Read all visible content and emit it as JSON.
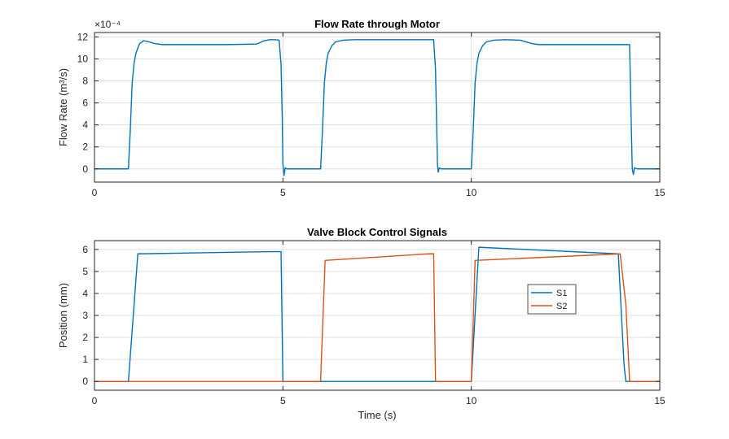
{
  "chart_data": [
    {
      "type": "line",
      "title": "Flow Rate through Motor",
      "xlabel": "",
      "ylabel": "Flow  Rate  (m³/s)",
      "y_exponent_label": "×10⁻⁴",
      "xlim": [
        0,
        15
      ],
      "ylim": [
        -1.2,
        12.4
      ],
      "xticks": [
        0,
        5,
        10,
        15
      ],
      "yticks": [
        0,
        2,
        4,
        6,
        8,
        10,
        12
      ],
      "grid": true,
      "series": [
        {
          "color": "#0072BD",
          "x": [
            0,
            0.9,
            0.95,
            1.0,
            1.05,
            1.1,
            1.15,
            1.2,
            1.3,
            1.4,
            1.6,
            1.8,
            2.5,
            3.5,
            4.3,
            4.5,
            4.65,
            4.8,
            4.9,
            4.95,
            4.98,
            5.0,
            5.03,
            5.06,
            5.1,
            5.2,
            5.5,
            6.0,
            6.05,
            6.1,
            6.15,
            6.2,
            6.3,
            6.4,
            6.6,
            6.9,
            7.5,
            8.5,
            9.0,
            9.05,
            9.08,
            9.1,
            9.12,
            9.15,
            9.2,
            9.3,
            9.5,
            9.9,
            10.0,
            10.05,
            10.1,
            10.15,
            10.2,
            10.3,
            10.4,
            10.6,
            10.9,
            11.3,
            11.6,
            11.8,
            12.0,
            12.5,
            13.5,
            14.2,
            14.22,
            14.25,
            14.27,
            14.3,
            14.33,
            14.4,
            14.5,
            15.0
          ],
          "y": [
            0,
            0,
            3.5,
            7.8,
            9.6,
            10.5,
            11.0,
            11.4,
            11.65,
            11.6,
            11.4,
            11.3,
            11.3,
            11.3,
            11.35,
            11.65,
            11.75,
            11.75,
            11.7,
            9.5,
            5.0,
            0.5,
            -0.6,
            0.1,
            0,
            0,
            0,
            0,
            3.5,
            7.8,
            9.6,
            10.5,
            11.2,
            11.55,
            11.7,
            11.75,
            11.75,
            11.75,
            11.75,
            9.0,
            4.0,
            0.5,
            -0.3,
            0.1,
            0,
            0,
            0,
            0,
            0,
            3.5,
            7.8,
            9.6,
            10.5,
            11.2,
            11.55,
            11.7,
            11.75,
            11.7,
            11.4,
            11.3,
            11.3,
            11.3,
            11.3,
            11.3,
            8.0,
            3.0,
            0,
            -0.5,
            0.1,
            0,
            0,
            0
          ]
        }
      ]
    },
    {
      "type": "line",
      "title": "Valve Block Control Signals",
      "xlabel": "Time (s)",
      "ylabel": "Position (mm)",
      "xlim": [
        0,
        15
      ],
      "ylim": [
        -0.4,
        6.4
      ],
      "xticks": [
        0,
        5,
        10,
        15
      ],
      "yticks": [
        0,
        1,
        2,
        3,
        4,
        5,
        6
      ],
      "grid": true,
      "legend_position": "center-right",
      "series": [
        {
          "name": "S1",
          "color": "#0072BD",
          "x": [
            0,
            0.9,
            1.15,
            4.7,
            4.95,
            5.0,
            10.0,
            10.2,
            13.9,
            14.05,
            14.1,
            15.0
          ],
          "y": [
            0,
            0,
            5.8,
            5.9,
            5.9,
            0,
            0,
            6.1,
            5.8,
            0.8,
            0,
            0
          ]
        },
        {
          "name": "S2",
          "color": "#D95319",
          "x": [
            0,
            6.0,
            6.12,
            8.85,
            9.0,
            9.05,
            10.0,
            10.1,
            13.95,
            14.1,
            14.2,
            15.0
          ],
          "y": [
            0,
            0,
            5.5,
            5.8,
            5.8,
            0,
            0,
            5.5,
            5.8,
            3.5,
            0,
            0
          ]
        }
      ]
    }
  ]
}
